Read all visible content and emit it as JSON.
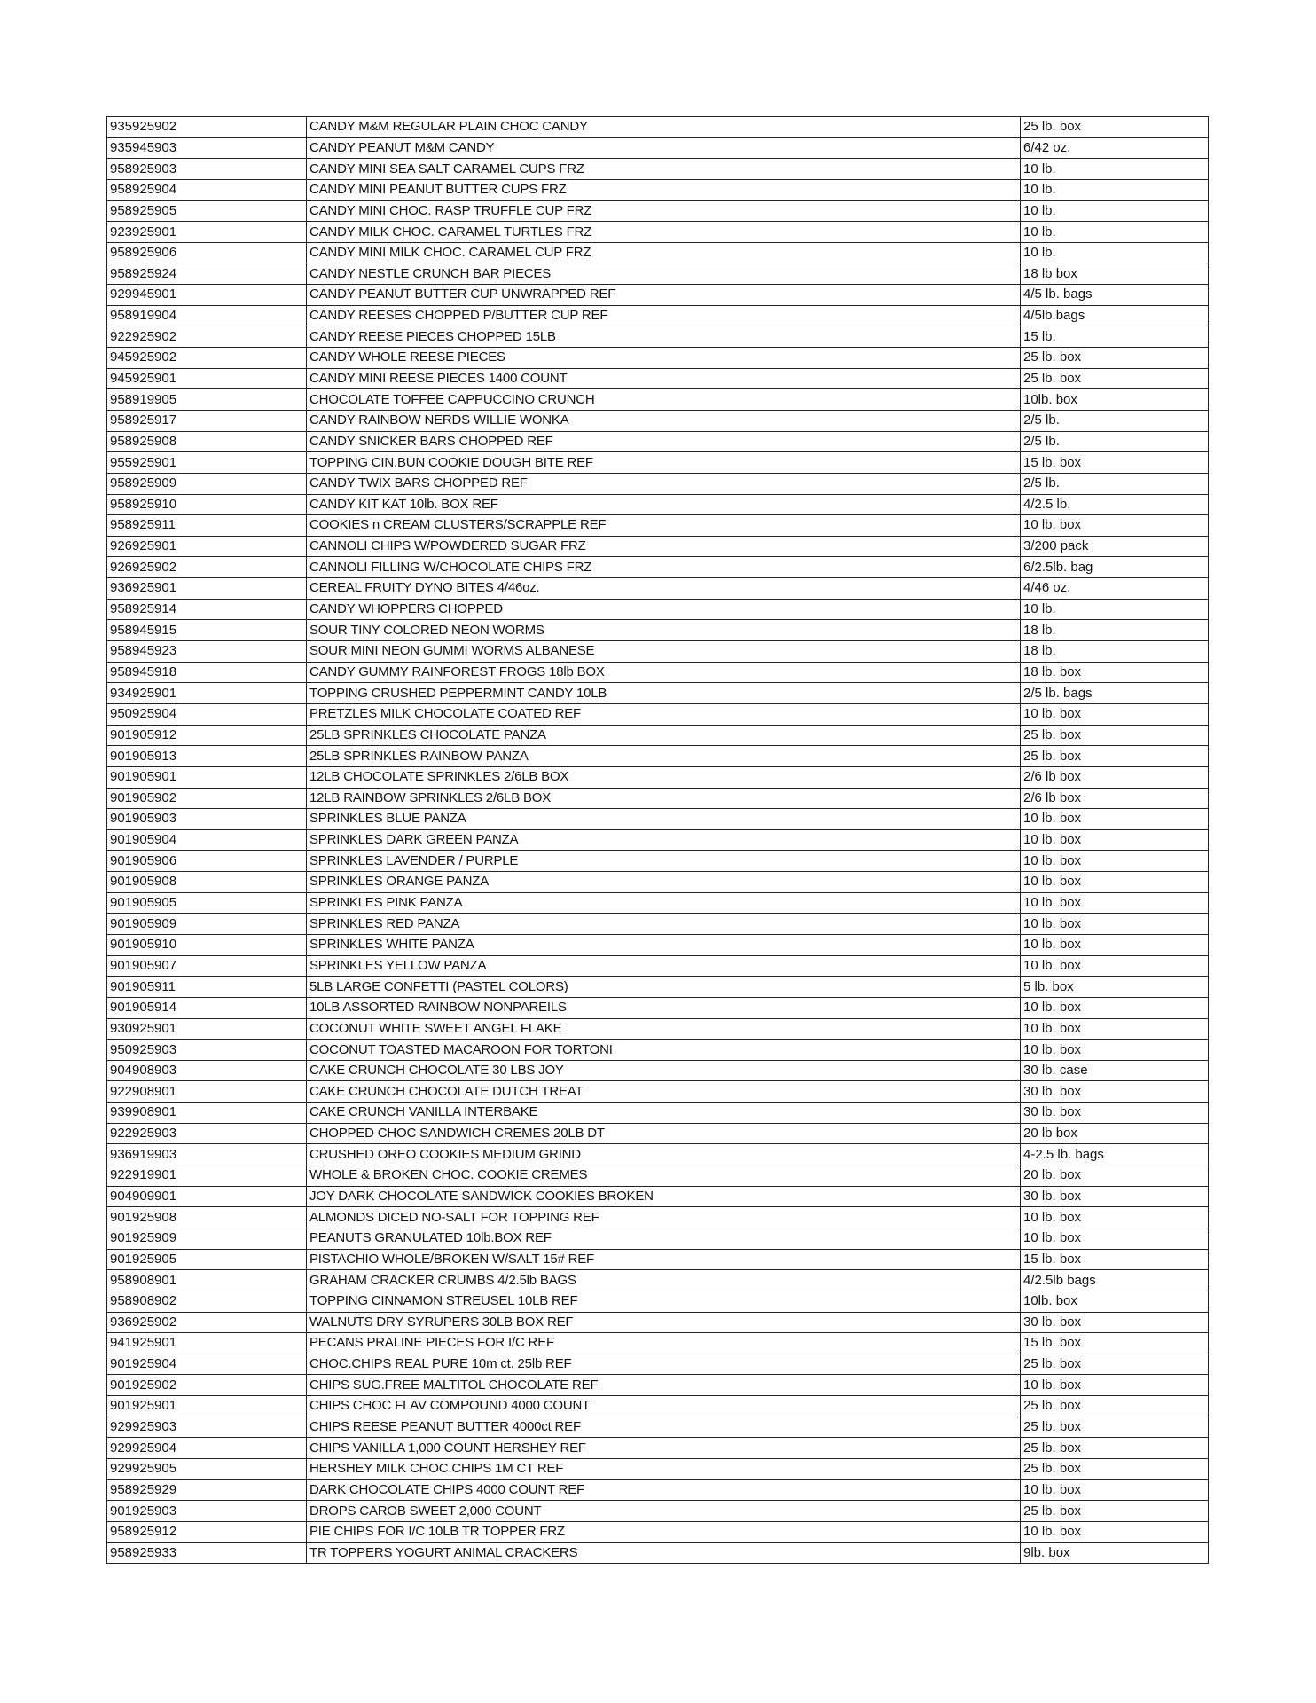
{
  "rows": [
    [
      "935925902",
      "CANDY M&M REGULAR PLAIN CHOC CANDY",
      "25 lb. box"
    ],
    [
      "935945903",
      "CANDY PEANUT M&M CANDY",
      "6/42 oz."
    ],
    [
      "958925903",
      "CANDY MINI SEA SALT CARAMEL CUPS FRZ",
      "10 lb."
    ],
    [
      "958925904",
      "CANDY MINI PEANUT BUTTER CUPS FRZ",
      "10 lb."
    ],
    [
      "958925905",
      "CANDY MINI CHOC. RASP TRUFFLE CUP FRZ",
      "10 lb."
    ],
    [
      "923925901",
      "CANDY MILK CHOC. CARAMEL TURTLES FRZ",
      "10 lb."
    ],
    [
      "958925906",
      "CANDY MINI MILK CHOC. CARAMEL CUP FRZ",
      "10 lb."
    ],
    [
      "958925924",
      "CANDY NESTLE CRUNCH BAR PIECES",
      "18 lb box"
    ],
    [
      "929945901",
      "CANDY PEANUT BUTTER CUP UNWRAPPED REF",
      "4/5 lb. bags"
    ],
    [
      "958919904",
      "CANDY REESES CHOPPED P/BUTTER CUP REF",
      "4/5lb.bags"
    ],
    [
      "922925902",
      "CANDY REESE PIECES CHOPPED 15LB",
      "15 lb."
    ],
    [
      "945925902",
      "CANDY WHOLE REESE PIECES",
      "25 lb. box"
    ],
    [
      "945925901",
      "CANDY MINI REESE PIECES 1400 COUNT",
      "25 lb. box"
    ],
    [
      "958919905",
      "CHOCOLATE TOFFEE CAPPUCCINO CRUNCH",
      "10lb. box"
    ],
    [
      "958925917",
      "CANDY RAINBOW NERDS WILLIE WONKA",
      "2/5 lb."
    ],
    [
      "958925908",
      "CANDY SNICKER BARS CHOPPED REF",
      "2/5 lb."
    ],
    [
      "955925901",
      "TOPPING CIN.BUN COOKIE DOUGH BITE REF",
      "15 lb. box"
    ],
    [
      "958925909",
      "CANDY TWIX BARS CHOPPED REF",
      "2/5 lb."
    ],
    [
      "958925910",
      "CANDY KIT KAT 10lb. BOX REF",
      "4/2.5 lb."
    ],
    [
      "958925911",
      "COOKIES n CREAM CLUSTERS/SCRAPPLE REF",
      "10 lb. box"
    ],
    [
      "926925901",
      "CANNOLI CHIPS W/POWDERED SUGAR FRZ",
      "3/200 pack"
    ],
    [
      "926925902",
      "CANNOLI FILLING W/CHOCOLATE CHIPS FRZ",
      "6/2.5lb. bag"
    ],
    [
      "936925901",
      "CEREAL FRUITY DYNO BITES 4/46oz.",
      "4/46 oz."
    ],
    [
      "958925914",
      "CANDY WHOPPERS CHOPPED",
      "10 lb."
    ],
    [
      "958945915",
      "SOUR TINY COLORED NEON WORMS",
      "18 lb."
    ],
    [
      "958945923",
      "SOUR MINI NEON GUMMI WORMS ALBANESE",
      "18 lb."
    ],
    [
      "958945918",
      "CANDY GUMMY RAINFOREST FROGS 18lb BOX",
      "18 lb. box"
    ],
    [
      "934925901",
      "TOPPING CRUSHED PEPPERMINT CANDY 10LB",
      "2/5 lb. bags"
    ],
    [
      "950925904",
      "PRETZLES MILK CHOCOLATE COATED REF",
      "10 lb. box"
    ],
    [
      "901905912",
      "25LB SPRINKLES CHOCOLATE PANZA",
      "25 lb. box"
    ],
    [
      "901905913",
      "25LB SPRINKLES RAINBOW PANZA",
      "25 lb. box"
    ],
    [
      "901905901",
      "12LB CHOCOLATE SPRINKLES 2/6LB BOX",
      "2/6 lb box"
    ],
    [
      "901905902",
      "12LB RAINBOW SPRINKLES 2/6LB BOX",
      "2/6 lb box"
    ],
    [
      "901905903",
      "SPRINKLES BLUE PANZA",
      "10 lb. box"
    ],
    [
      "901905904",
      "SPRINKLES DARK GREEN PANZA",
      "10 lb. box"
    ],
    [
      "901905906",
      "SPRINKLES LAVENDER / PURPLE",
      "10 lb. box"
    ],
    [
      "901905908",
      "SPRINKLES ORANGE PANZA",
      "10 lb. box"
    ],
    [
      "901905905",
      "SPRINKLES PINK PANZA",
      "10 lb. box"
    ],
    [
      "901905909",
      "SPRINKLES RED PANZA",
      "10 lb. box"
    ],
    [
      "901905910",
      "SPRINKLES WHITE PANZA",
      "10 lb. box"
    ],
    [
      "901905907",
      "SPRINKLES YELLOW PANZA",
      "10 lb. box"
    ],
    [
      "901905911",
      "5LB LARGE CONFETTI (PASTEL COLORS)",
      "5 lb. box"
    ],
    [
      "901905914",
      "10LB ASSORTED RAINBOW NONPAREILS",
      "10 lb. box"
    ],
    [
      "930925901",
      "COCONUT WHITE SWEET ANGEL FLAKE",
      "10 lb. box"
    ],
    [
      "950925903",
      "COCONUT TOASTED MACAROON FOR TORTONI",
      "10 lb. box"
    ],
    [
      "904908903",
      "CAKE CRUNCH CHOCOLATE 30 LBS JOY",
      "30 lb. case"
    ],
    [
      "922908901",
      "CAKE CRUNCH CHOCOLATE DUTCH TREAT",
      "30 lb. box"
    ],
    [
      "939908901",
      "CAKE CRUNCH VANILLA INTERBAKE",
      "30 lb. box"
    ],
    [
      "922925903",
      "CHOPPED CHOC SANDWICH CREMES 20LB DT",
      "20 lb box"
    ],
    [
      "936919903",
      "CRUSHED OREO COOKIES MEDIUM GRIND",
      "4-2.5 lb. bags"
    ],
    [
      "922919901",
      "WHOLE & BROKEN CHOC. COOKIE CREMES",
      "20 lb. box"
    ],
    [
      "904909901",
      "JOY DARK CHOCOLATE SANDWICK COOKIES BROKEN",
      "30 lb. box"
    ],
    [
      "901925908",
      "ALMONDS DICED NO-SALT FOR TOPPING REF",
      "10 lb. box"
    ],
    [
      "901925909",
      "PEANUTS GRANULATED 10lb.BOX REF",
      "10 lb. box"
    ],
    [
      "901925905",
      "PISTACHIO WHOLE/BROKEN W/SALT 15# REF",
      "15 lb. box"
    ],
    [
      "958908901",
      "GRAHAM CRACKER CRUMBS 4/2.5lb BAGS",
      "4/2.5lb bags"
    ],
    [
      "958908902",
      "TOPPING CINNAMON STREUSEL 10LB REF",
      "10lb. box"
    ],
    [
      "936925902",
      "WALNUTS DRY SYRUPERS 30LB BOX REF",
      "30 lb. box"
    ],
    [
      "941925901",
      "PECANS PRALINE PIECES FOR I/C REF",
      "15 lb. box"
    ],
    [
      "901925904",
      "CHOC.CHIPS REAL PURE 10m ct. 25lb REF",
      "25 lb. box"
    ],
    [
      "901925902",
      "CHIPS SUG.FREE MALTITOL CHOCOLATE REF",
      "10 lb. box"
    ],
    [
      "901925901",
      "CHIPS CHOC FLAV COMPOUND 4000 COUNT",
      "25 lb. box"
    ],
    [
      "929925903",
      "CHIPS REESE PEANUT BUTTER 4000ct REF",
      "25 lb. box"
    ],
    [
      "929925904",
      "CHIPS VANILLA 1,000 COUNT HERSHEY REF",
      "25 lb. box"
    ],
    [
      "929925905",
      "HERSHEY MILK CHOC.CHIPS 1M CT REF",
      "25 lb. box"
    ],
    [
      "958925929",
      "DARK CHOCOLATE CHIPS 4000 COUNT REF",
      "10 lb. box"
    ],
    [
      "901925903",
      "DROPS CAROB SWEET 2,000 COUNT",
      "25 lb. box"
    ],
    [
      "958925912",
      "PIE CHIPS FOR I/C 10LB TR TOPPER FRZ",
      "10 lb. box"
    ],
    [
      "958925933",
      "TR TOPPERS YOGURT ANIMAL CRACKERS",
      "9lb. box"
    ]
  ]
}
